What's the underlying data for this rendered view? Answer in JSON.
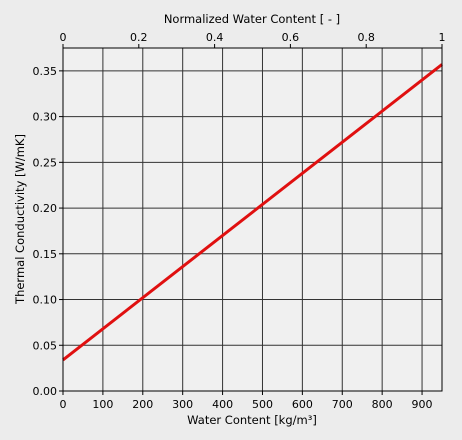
{
  "chart_data": {
    "type": "line",
    "top_axis_title": "Normalized Water Content [ - ]",
    "xlabel": "Water Content [kg/m³]",
    "ylabel": "Thermal Conductivity [W/mK]",
    "xlim": [
      0,
      950
    ],
    "ylim": [
      0,
      0.375
    ],
    "top_xlim": [
      0,
      1
    ],
    "x_ticks": [
      "0",
      "100",
      "200",
      "300",
      "400",
      "500",
      "600",
      "700",
      "800",
      "900"
    ],
    "top_ticks": [
      "0",
      "0.2",
      "0.4",
      "0.6",
      "0.8",
      "1"
    ],
    "y_ticks": [
      "0.00",
      "0.05",
      "0.10",
      "0.15",
      "0.20",
      "0.25",
      "0.30",
      "0.35"
    ],
    "grid": true,
    "series": [
      {
        "color": "#e01010",
        "x": [
          0,
          950
        ],
        "y": [
          0.034,
          0.357
        ]
      }
    ]
  }
}
